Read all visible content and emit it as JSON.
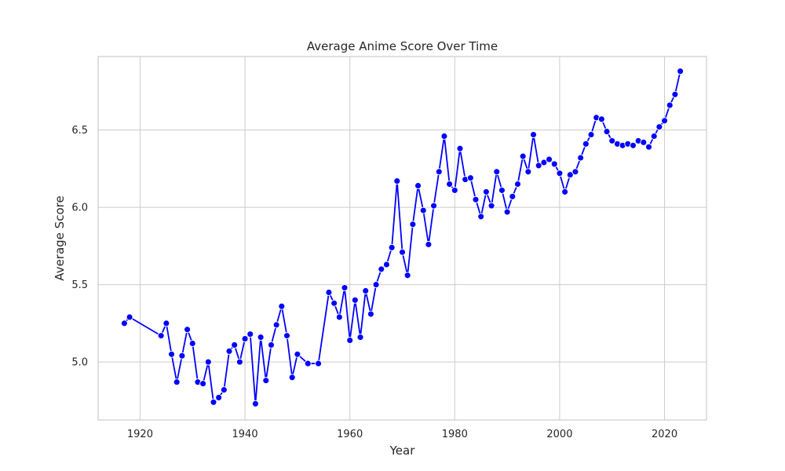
{
  "chart_data": {
    "type": "line",
    "title": "Average Anime Score Over Time",
    "xlabel": "Year",
    "ylabel": "Average Score",
    "xlim": [
      1912,
      2028
    ],
    "ylim": [
      4.625,
      6.975
    ],
    "xticks": [
      1920,
      1940,
      1960,
      1980,
      2000,
      2020
    ],
    "yticks": [
      5.0,
      5.5,
      6.0,
      6.5
    ],
    "xtick_labels": [
      "1920",
      "1940",
      "1960",
      "1980",
      "2000",
      "2020"
    ],
    "ytick_labels": [
      "5.0",
      "5.5",
      "6.0",
      "6.5"
    ],
    "grid": true,
    "legend": "none",
    "color": "#0000ff",
    "series": [
      {
        "x": [
          1917,
          1918,
          1924,
          1925,
          1926,
          1927,
          1928,
          1929,
          1930,
          1931,
          1932,
          1933,
          1934,
          1935,
          1936,
          1937,
          1938,
          1939,
          1940,
          1941,
          1942,
          1943,
          1944,
          1945,
          1946,
          1947,
          1948,
          1949,
          1950,
          1952,
          1954,
          1956,
          1957,
          1958,
          1959,
          1960,
          1961,
          1962,
          1963,
          1964,
          1965,
          1966,
          1967,
          1968,
          1969,
          1970,
          1971,
          1972,
          1973,
          1974,
          1975,
          1976,
          1977,
          1978,
          1979,
          1980,
          1981,
          1982,
          1983,
          1984,
          1985,
          1986,
          1987,
          1988,
          1989,
          1990,
          1991,
          1992,
          1993,
          1994,
          1995,
          1996,
          1997,
          1998,
          1999,
          2000,
          2001,
          2002,
          2003,
          2004,
          2005,
          2006,
          2007,
          2008,
          2009,
          2010,
          2011,
          2012,
          2013,
          2014,
          2015,
          2016,
          2017,
          2018,
          2019,
          2020,
          2021,
          2022,
          2023
        ],
        "y": [
          5.25,
          5.29,
          5.17,
          5.25,
          5.05,
          4.87,
          5.04,
          5.21,
          5.12,
          4.87,
          4.86,
          5.0,
          4.74,
          4.77,
          4.82,
          5.07,
          5.11,
          5.0,
          5.15,
          5.18,
          4.73,
          5.16,
          4.88,
          5.11,
          5.24,
          5.36,
          5.17,
          4.9,
          5.05,
          4.99,
          4.99,
          5.45,
          5.38,
          5.29,
          5.48,
          5.14,
          5.4,
          5.16,
          5.46,
          5.31,
          5.5,
          5.6,
          5.63,
          5.74,
          6.17,
          5.71,
          5.56,
          5.89,
          6.14,
          5.98,
          5.76,
          6.01,
          6.23,
          6.46,
          6.15,
          6.11,
          6.38,
          6.18,
          6.19,
          6.05,
          5.94,
          6.1,
          6.01,
          6.23,
          6.11,
          5.97,
          6.07,
          6.15,
          6.33,
          6.23,
          6.47,
          6.27,
          6.29,
          6.31,
          6.28,
          6.22,
          6.1,
          6.21,
          6.23,
          6.32,
          6.41,
          6.47,
          6.58,
          6.57,
          6.49,
          6.43,
          6.41,
          6.4,
          6.41,
          6.4,
          6.43,
          6.42,
          6.39,
          6.46,
          6.52,
          6.56,
          6.66,
          6.73,
          6.88
        ]
      }
    ]
  }
}
